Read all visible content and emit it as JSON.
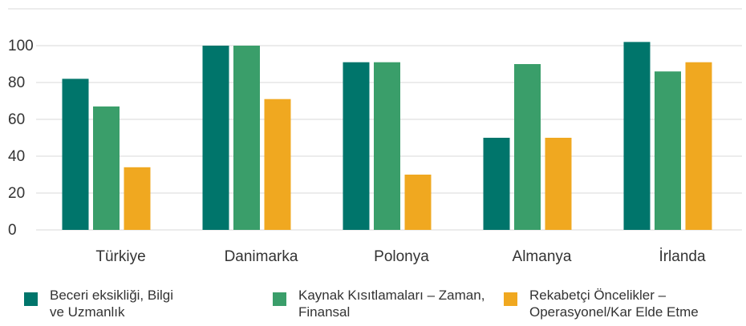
{
  "chart_data": {
    "type": "bar",
    "categories": [
      "Türkiye",
      "Danimarka",
      "Polonya",
      "Almanya",
      "İrlanda"
    ],
    "series": [
      {
        "name": "Beceri eksikliği, Bilgi ve Uzmanlık",
        "color": "#00756b",
        "values": [
          82,
          100,
          91,
          50,
          102
        ]
      },
      {
        "name": "Kaynak Kısıtlamaları – Zaman, Finansal",
        "color": "#3a9e6a",
        "values": [
          67,
          100,
          91,
          90,
          86
        ]
      },
      {
        "name": "Rekabetçi Öncelikler – Operasyonel/Kar Elde Etme",
        "color": "#f0a820",
        "values": [
          34,
          71,
          30,
          50,
          91
        ]
      }
    ],
    "ylim": [
      0,
      120
    ],
    "yticks": [
      0,
      20,
      40,
      60,
      80,
      100
    ],
    "grid": true,
    "legend": "bottom"
  }
}
